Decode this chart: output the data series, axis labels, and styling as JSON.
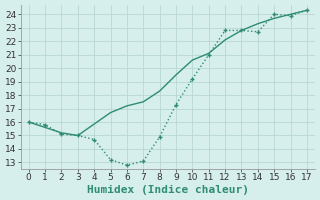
{
  "line_dotted_x": [
    0,
    1,
    2,
    3,
    4,
    5,
    6,
    7,
    8,
    9,
    10,
    11,
    12,
    13,
    14,
    15,
    16,
    17
  ],
  "line_dotted_y": [
    16.0,
    15.8,
    15.1,
    15.0,
    14.7,
    13.2,
    12.8,
    13.1,
    14.9,
    17.3,
    19.2,
    21.0,
    22.8,
    22.8,
    22.7,
    24.0,
    23.9,
    24.3
  ],
  "line_solid_x": [
    0,
    2,
    3,
    5,
    6,
    7,
    8,
    9,
    10,
    11,
    12,
    13,
    14,
    15,
    16,
    17
  ],
  "line_solid_y": [
    16.0,
    15.2,
    15.0,
    16.7,
    17.2,
    17.5,
    18.3,
    19.5,
    20.6,
    21.1,
    22.1,
    22.8,
    23.3,
    23.7,
    24.0,
    24.3
  ],
  "line_color": "#2e8b74",
  "bg_color": "#d6eeec",
  "grid_color": "#b8d8d5",
  "xlabel": "Humidex (Indice chaleur)",
  "xlim": [
    -0.5,
    17.5
  ],
  "ylim": [
    12.5,
    24.7
  ],
  "xticks": [
    0,
    1,
    2,
    3,
    4,
    5,
    6,
    7,
    8,
    9,
    10,
    11,
    12,
    13,
    14,
    15,
    16,
    17
  ],
  "yticks": [
    13,
    14,
    15,
    16,
    17,
    18,
    19,
    20,
    21,
    22,
    23,
    24
  ],
  "markersize": 2.5,
  "linewidth": 1.0,
  "xlabel_fontsize": 8,
  "tick_fontsize": 6.5
}
